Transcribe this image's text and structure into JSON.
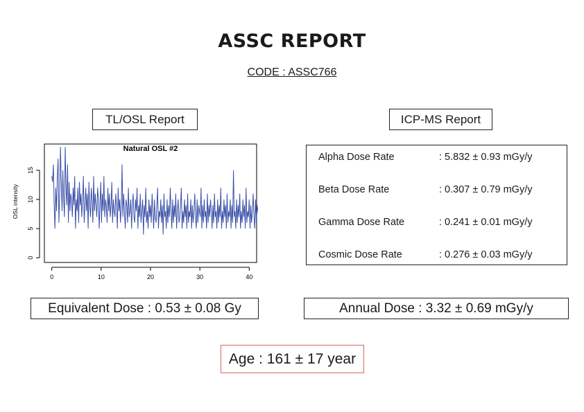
{
  "report": {
    "title": "ASSC REPORT",
    "code": "CODE : ASSC766"
  },
  "left_panel": {
    "header": "TL/OSL Report",
    "result": "Equivalent Dose : 0.53 ± 0.08 Gy"
  },
  "right_panel": {
    "header": "ICP-MS Report",
    "rates": [
      {
        "label": "Alpha Dose Rate",
        "value": ": 5.832 ± 0.93 mGy/y"
      },
      {
        "label": "Beta Dose Rate",
        "value": ": 0.307 ± 0.79 mGy/y"
      },
      {
        "label": "Gamma Dose Rate",
        "value": ": 0.241 ± 0.01 mGy/y"
      },
      {
        "label": "Cosmic Dose Rate",
        "value": ": 0.276 ± 0.03 mGy/y"
      }
    ],
    "result": "Annual Dose : 3.32 ± 0.69 mGy/y"
  },
  "age": "Age : 161 ± 17 year",
  "colors": {
    "line": "#3a4fa8",
    "age_border": "#e06060"
  },
  "chart_data": {
    "type": "line",
    "title": "Natural OSL #2",
    "xlabel": "",
    "ylabel": "OSL intensity",
    "xlim": [
      -1.5,
      41.5
    ],
    "ylim": [
      -0.8,
      19.5
    ],
    "xticks": [
      0,
      10,
      20,
      30,
      40
    ],
    "yticks": [
      0,
      5,
      10,
      15
    ],
    "grid": false,
    "series": [
      {
        "x_start": 0,
        "x_step": 0.16,
        "values": [
          14,
          13,
          16,
          9,
          5,
          12,
          8,
          14,
          17,
          6,
          11,
          19,
          13,
          8,
          15,
          10,
          7,
          19,
          12,
          9,
          16,
          6,
          13,
          8,
          11,
          10,
          7,
          12,
          9,
          14,
          5,
          10,
          8,
          12,
          6,
          13,
          9,
          11,
          7,
          10,
          14,
          6,
          9,
          12,
          8,
          11,
          5,
          13,
          9,
          7,
          12,
          10,
          6,
          14,
          8,
          11,
          9,
          7,
          12,
          10,
          5,
          9,
          13,
          6,
          11,
          8,
          14,
          7,
          10,
          9,
          6,
          12,
          8,
          11,
          7,
          9,
          13,
          6,
          10,
          8,
          7,
          11,
          9,
          5,
          12,
          8,
          10,
          6,
          9,
          16,
          7,
          11,
          8,
          5,
          10,
          9,
          6,
          12,
          7,
          8,
          10,
          5,
          9,
          11,
          7,
          6,
          10,
          8,
          12,
          5,
          9,
          7,
          11,
          6,
          8,
          10,
          4,
          9,
          7,
          12,
          6,
          8,
          5,
          10,
          7,
          9,
          6,
          11,
          8,
          5,
          10,
          7,
          6,
          9,
          12,
          5,
          8,
          7,
          10,
          6,
          9,
          4,
          11,
          7,
          8,
          5,
          10,
          6,
          9,
          7,
          12,
          8,
          5,
          10,
          6,
          9,
          7,
          11,
          5,
          8,
          10,
          6,
          7,
          9,
          12,
          5,
          8,
          6,
          10,
          7,
          9,
          5,
          11,
          6,
          8,
          7,
          10,
          5,
          9,
          6,
          8,
          11,
          7,
          5,
          10,
          6,
          9,
          8,
          7,
          12,
          5,
          9,
          6,
          10,
          7,
          8,
          5,
          11,
          6,
          9,
          7,
          10,
          8,
          5,
          9,
          6,
          11,
          7,
          8,
          5,
          10,
          6,
          9,
          7,
          12,
          5,
          8,
          6,
          10,
          7,
          9,
          5,
          11,
          6,
          8,
          7,
          10,
          5,
          9,
          6,
          15,
          7,
          8,
          5,
          10,
          6,
          9,
          7,
          11,
          5,
          8,
          6,
          10,
          7,
          9,
          5,
          12,
          6,
          8,
          7,
          10,
          5,
          9,
          6,
          8,
          11,
          7,
          5,
          10,
          6,
          9,
          8,
          7,
          11,
          5,
          9,
          6,
          10,
          7,
          8,
          5,
          11,
          6,
          9,
          7,
          10,
          8,
          5,
          9,
          6,
          12,
          7,
          8,
          5,
          10,
          6,
          9,
          7,
          11,
          5,
          8,
          6,
          10,
          7,
          9,
          5,
          11,
          6,
          8,
          7,
          10,
          5,
          9,
          6,
          8,
          12,
          7,
          5,
          10,
          6,
          9,
          8,
          7,
          11,
          5,
          9,
          6,
          10,
          7,
          8,
          5,
          11,
          6,
          9,
          7,
          10,
          8,
          5,
          9,
          6,
          11,
          7,
          8,
          5,
          10,
          6,
          9,
          7,
          12,
          5,
          8,
          6,
          10,
          7,
          9,
          5,
          11,
          6,
          8,
          7,
          10,
          5,
          9,
          6,
          8,
          11,
          7,
          5,
          10,
          6,
          9,
          8,
          7,
          11,
          4,
          9,
          6,
          10,
          7,
          8,
          5,
          11,
          6,
          9,
          7,
          10,
          8,
          5,
          9,
          6,
          12,
          7,
          8,
          5,
          10,
          6,
          9,
          7,
          11,
          5,
          8,
          6,
          10,
          7,
          9,
          5,
          3,
          8,
          5,
          4,
          2
        ]
      }
    ]
  }
}
